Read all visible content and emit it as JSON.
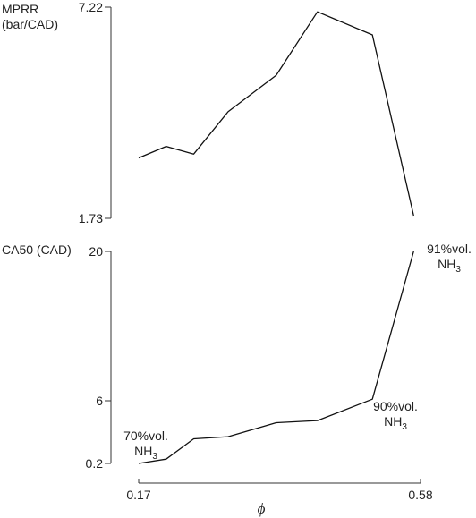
{
  "chart_data": [
    {
      "type": "line",
      "ylabel": "MPRR\n(bar/CAD)",
      "ylim": [
        1.73,
        7.22
      ],
      "xlim": [
        0.17,
        0.58
      ],
      "x": [
        0.17,
        0.21,
        0.25,
        0.3,
        0.37,
        0.43,
        0.51,
        0.57
      ],
      "values": [
        3.3,
        3.6,
        3.4,
        4.5,
        5.45,
        7.1,
        6.5,
        1.8
      ],
      "ytick_labels": [
        "7.22",
        "1.73"
      ]
    },
    {
      "type": "line",
      "ylabel": "CA50 (CAD)",
      "ylim": [
        0.2,
        20
      ],
      "xlim": [
        0.17,
        0.58
      ],
      "x": [
        0.17,
        0.21,
        0.25,
        0.3,
        0.37,
        0.43,
        0.51,
        0.57
      ],
      "values": [
        0.2,
        0.6,
        2.5,
        2.7,
        4.0,
        4.2,
        6.2,
        20.0
      ],
      "ytick_labels": [
        "20",
        "6",
        "0.2"
      ],
      "xlabel": "ϕ",
      "xtick_labels": [
        "0.17",
        "0.58"
      ],
      "annotations": [
        {
          "line1": "70%vol.",
          "line2": "NH",
          "sub": "3"
        },
        {
          "line1": "90%vol.",
          "line2": "NH",
          "sub": "3"
        },
        {
          "line1": "91%vol.",
          "line2": "NH",
          "sub": "3"
        }
      ]
    }
  ]
}
